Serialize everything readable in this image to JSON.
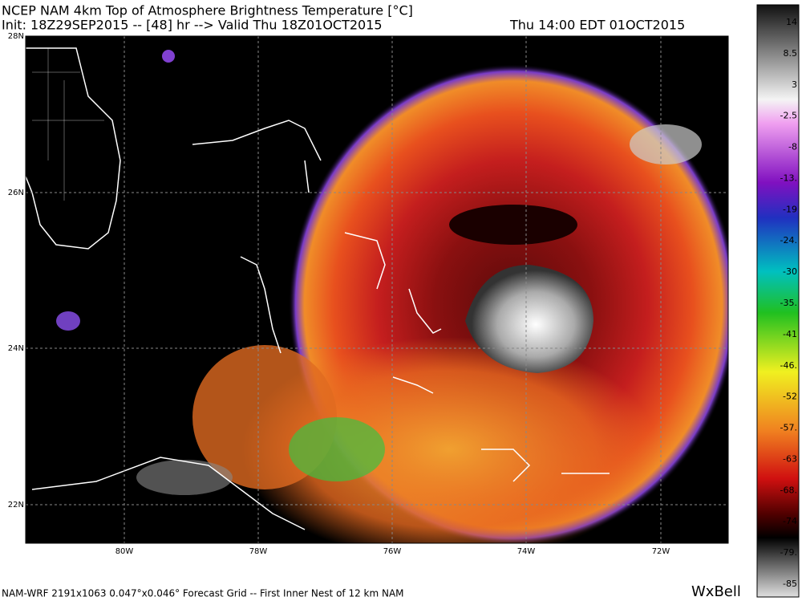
{
  "header": {
    "title": "NCEP NAM 4km Top of Atmosphere Brightness Temperature [°C]",
    "init": "Init: 18Z29SEP2015 -- [48] hr --> Valid Thu 18Z01OCT2015",
    "valid_local": "Thu 14:00 EDT 01OCT2015"
  },
  "map": {
    "lat_labels": [
      "28N",
      "26N",
      "24N",
      "22N"
    ],
    "lon_labels": [
      "80W",
      "78W",
      "76W",
      "74W",
      "72W"
    ]
  },
  "colorbar": {
    "labels": [
      "14",
      "8.5",
      "3",
      "-2.5",
      "-8",
      "-13.",
      "-19",
      "-24.",
      "-30",
      "-35.",
      "-41",
      "-46.",
      "-52",
      "-57.",
      "-63",
      "-68.",
      "-74",
      "-79.",
      "-85"
    ]
  },
  "footer": {
    "grid_info": "NAM-WRF 2191x1063 0.047°x0.046° Forecast Grid -- First Inner Nest of 12 km NAM",
    "logo": "WxBell"
  }
}
